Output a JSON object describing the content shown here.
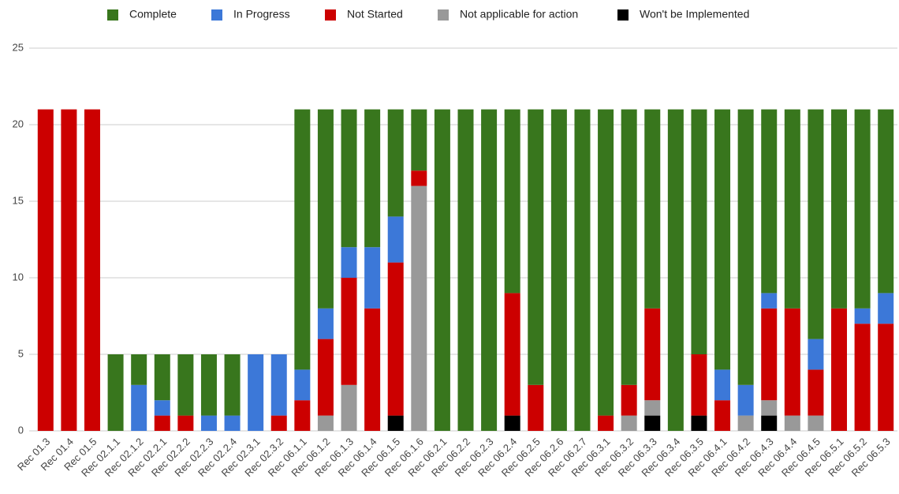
{
  "chart_data": {
    "type": "stacked_bar",
    "categories": [
      "Rec 01.3",
      "Rec 01.4",
      "Rec 01.5",
      "Rec 02.1.1",
      "Rec 02.1.2",
      "Rec 02.2.1",
      "Rec 02.2.2",
      "Rec 02.2.3",
      "Rec 02.2.4",
      "Rec 02.3.1",
      "Rec 02.3.2",
      "Rec 06.1.1",
      "Rec 06.1.2",
      "Rec 06.1.3",
      "Rec 06.1.4",
      "Rec 06.1.5",
      "Rec 06.1.6",
      "Rec 06.2.1",
      "Rec 06.2.2",
      "Rec 06.2.3",
      "Rec 06.2.4",
      "Rec 06.2.5",
      "Rec 06.2.6",
      "Rec 06.2.7",
      "Rec 06.3.1",
      "Rec 06.3.2",
      "Rec 06.3.3",
      "Rec 06.3.4",
      "Rec 06.3.5",
      "Rec 06.4.1",
      "Rec 06.4.2",
      "Rec 06.4.3",
      "Rec 06.4.4",
      "Rec 06.4.5",
      "Rec 06.5.1",
      "Rec 06.5.2",
      "Rec 06.5.3"
    ],
    "series": [
      {
        "name": "Complete",
        "color": "#38761d",
        "values": [
          0,
          0,
          0,
          5,
          2,
          3,
          4,
          4,
          4,
          0,
          0,
          17,
          13,
          9,
          9,
          7,
          4,
          21,
          21,
          21,
          12,
          18,
          21,
          21,
          20,
          18,
          13,
          21,
          16,
          17,
          18,
          12,
          13,
          15,
          13,
          13,
          12
        ]
      },
      {
        "name": "In Progress",
        "color": "#3c78d8",
        "values": [
          0,
          0,
          0,
          0,
          3,
          1,
          0,
          1,
          1,
          5,
          4,
          2,
          2,
          2,
          4,
          3,
          0,
          0,
          0,
          0,
          0,
          0,
          0,
          0,
          0,
          0,
          0,
          0,
          0,
          2,
          2,
          1,
          0,
          2,
          0,
          1,
          2
        ]
      },
      {
        "name": "Not Started",
        "color": "#cc0000",
        "values": [
          21,
          21,
          21,
          0,
          0,
          1,
          1,
          0,
          0,
          0,
          1,
          2,
          5,
          7,
          8,
          10,
          1,
          0,
          0,
          0,
          8,
          3,
          0,
          0,
          1,
          2,
          6,
          0,
          4,
          2,
          0,
          6,
          7,
          3,
          8,
          7,
          7
        ]
      },
      {
        "name": "Not applicable for action",
        "color": "#999999",
        "values": [
          0,
          0,
          0,
          0,
          0,
          0,
          0,
          0,
          0,
          0,
          0,
          0,
          1,
          3,
          0,
          0,
          16,
          0,
          0,
          0,
          0,
          0,
          0,
          0,
          0,
          1,
          1,
          0,
          0,
          0,
          1,
          1,
          1,
          1,
          0,
          0,
          0
        ]
      },
      {
        "name": "Won't be Implemented",
        "color": "#000000",
        "values": [
          0,
          0,
          0,
          0,
          0,
          0,
          0,
          0,
          0,
          0,
          0,
          0,
          0,
          0,
          0,
          1,
          0,
          0,
          0,
          0,
          1,
          0,
          0,
          0,
          0,
          0,
          1,
          0,
          1,
          0,
          0,
          1,
          0,
          0,
          0,
          0,
          0
        ]
      }
    ],
    "ylim": [
      0,
      25
    ],
    "yticks": [
      0,
      5,
      10,
      15,
      20,
      25
    ],
    "grid": true,
    "legend": "top"
  }
}
